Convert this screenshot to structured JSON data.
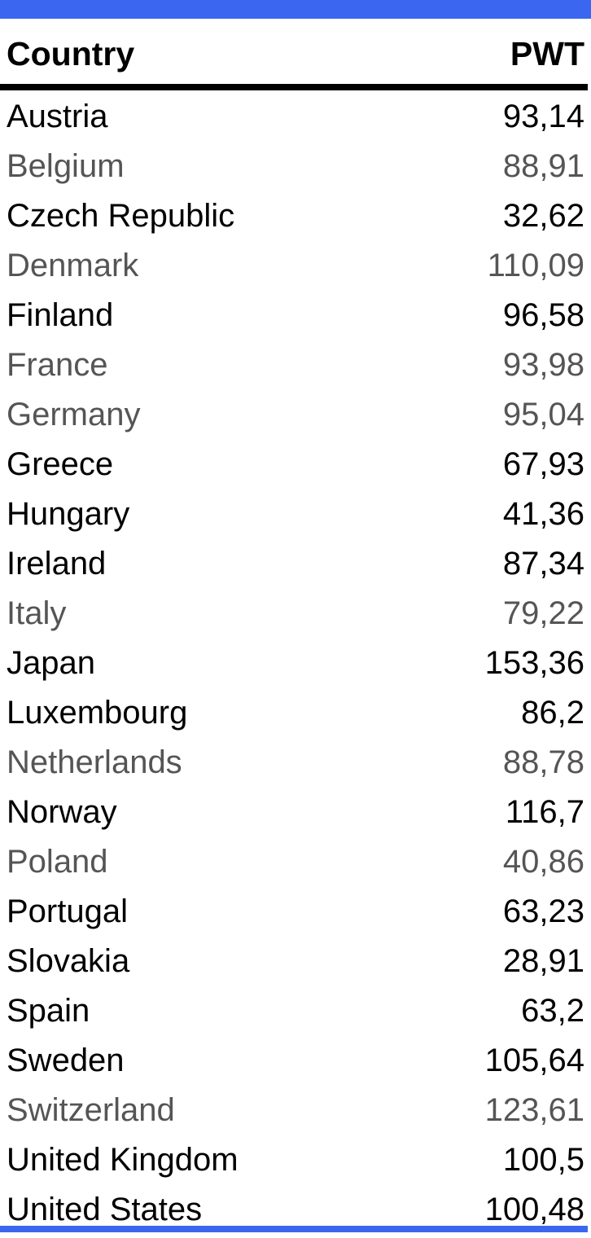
{
  "colors": {
    "accent": "#3b66f0",
    "text_dark": "#000000",
    "text_muted": "#555555"
  },
  "table": {
    "headers": {
      "country": "Country",
      "pwt": "PWT"
    },
    "rows": [
      {
        "country": "Austria",
        "pwt": "93,14",
        "tone": "dark"
      },
      {
        "country": "Belgium",
        "pwt": "88,91",
        "tone": "muted"
      },
      {
        "country": "Czech Republic",
        "pwt": "32,62",
        "tone": "dark"
      },
      {
        "country": "Denmark",
        "pwt": "110,09",
        "tone": "muted"
      },
      {
        "country": "Finland",
        "pwt": "96,58",
        "tone": "dark"
      },
      {
        "country": "France",
        "pwt": "93,98",
        "tone": "muted"
      },
      {
        "country": "Germany",
        "pwt": "95,04",
        "tone": "muted"
      },
      {
        "country": "Greece",
        "pwt": "67,93",
        "tone": "dark"
      },
      {
        "country": "Hungary",
        "pwt": "41,36",
        "tone": "dark"
      },
      {
        "country": "Ireland",
        "pwt": "87,34",
        "tone": "dark"
      },
      {
        "country": "Italy",
        "pwt": "79,22",
        "tone": "muted"
      },
      {
        "country": "Japan",
        "pwt": "153,36",
        "tone": "dark"
      },
      {
        "country": "Luxembourg",
        "pwt": "86,2",
        "tone": "dark"
      },
      {
        "country": "Netherlands",
        "pwt": "88,78",
        "tone": "muted"
      },
      {
        "country": "Norway",
        "pwt": "116,7",
        "tone": "dark"
      },
      {
        "country": "Poland",
        "pwt": "40,86",
        "tone": "muted"
      },
      {
        "country": "Portugal",
        "pwt": "63,23",
        "tone": "dark"
      },
      {
        "country": "Slovakia",
        "pwt": "28,91",
        "tone": "dark"
      },
      {
        "country": "Spain",
        "pwt": "63,2",
        "tone": "dark"
      },
      {
        "country": "Sweden",
        "pwt": "105,64",
        "tone": "dark"
      },
      {
        "country": "Switzerland",
        "pwt": "123,61",
        "tone": "muted"
      },
      {
        "country": "United Kingdom",
        "pwt": "100,5",
        "tone": "dark"
      },
      {
        "country": "United States",
        "pwt": "100,48",
        "tone": "dark"
      }
    ]
  }
}
